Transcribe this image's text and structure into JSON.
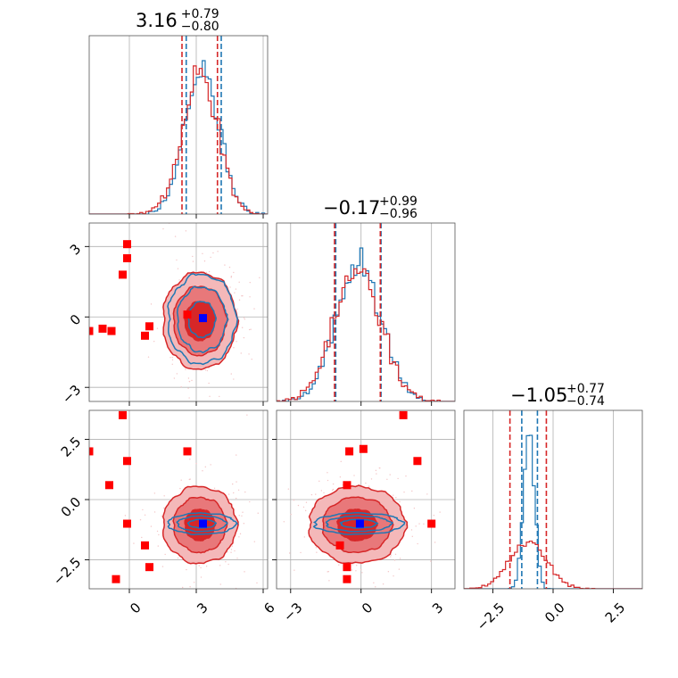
{
  "chart_data": {
    "type": "corner",
    "parameters": 3,
    "colors": {
      "red": "#d62728",
      "blue": "#1f77b4",
      "red_fill_outer": "#f4b8b9",
      "red_fill_mid": "#e8787a",
      "red_fill_inner": "#d62728",
      "grid": "#b0b0b0",
      "marker_red": "#ff0000",
      "marker_blue": "#0000ff"
    },
    "titles": [
      {
        "main": "3.16",
        "plus": "+0.79",
        "minus": "−0.80"
      },
      {
        "main": "−0.17",
        "plus": "+0.99",
        "minus": "−0.96"
      },
      {
        "main": "−1.05",
        "plus": "+0.77",
        "minus": "−0.74"
      }
    ],
    "ranges": [
      [
        -1.8,
        6.2
      ],
      [
        -3.6,
        4.0
      ],
      [
        -3.7,
        3.7
      ]
    ],
    "x_ticks": [
      {
        "values": [
          0,
          3,
          6
        ],
        "labels": [
          "0",
          "3",
          "6"
        ]
      },
      {
        "values": [
          -3,
          0,
          3
        ],
        "labels": [
          "−3",
          "0",
          "3"
        ]
      },
      {
        "values": [
          -2.5,
          0.0,
          2.5
        ],
        "labels": [
          "−2.5",
          "0.0",
          "2.5"
        ]
      }
    ],
    "y_ticks": [
      null,
      {
        "values": [
          -3,
          0,
          3
        ],
        "labels": [
          "−3",
          "0",
          "3"
        ]
      },
      {
        "values": [
          -2.5,
          0.0,
          2.5
        ],
        "labels": [
          "−2.5",
          "0.0",
          "2.5"
        ]
      }
    ],
    "hist1d": [
      {
        "red_mean": 3.16,
        "red_sd": 0.79,
        "red_q": [
          2.36,
          3.16,
          3.95
        ],
        "blue_mean": 3.25,
        "blue_sd": 0.76,
        "blue_q": [
          2.55,
          3.25,
          4.12
        ]
      },
      {
        "red_mean": -0.17,
        "red_sd": 0.98,
        "red_q": [
          -1.13,
          -0.17,
          0.82
        ],
        "blue_mean": -0.1,
        "blue_sd": 0.95,
        "blue_q": [
          -1.08,
          -0.1,
          0.85
        ]
      },
      {
        "red_mean": -1.05,
        "red_sd": 0.76,
        "red_q": [
          -1.79,
          -1.05,
          -0.28
        ],
        "blue_mean": -1.0,
        "blue_sd": 0.22,
        "blue_q": [
          -1.3,
          -1.0,
          -0.65
        ]
      }
    ],
    "truth_blue": [
      3.3,
      -0.05,
      -1.0
    ],
    "red_markers": {
      "1_0": [
        [
          -1.8,
          -0.6
        ],
        [
          -1.2,
          -0.5
        ],
        [
          -0.8,
          -0.6
        ],
        [
          -0.3,
          1.8
        ],
        [
          -0.1,
          2.5
        ],
        [
          -0.1,
          3.1
        ],
        [
          0.7,
          -0.8
        ],
        [
          0.9,
          -0.4
        ],
        [
          2.6,
          0.1
        ]
      ],
      "2_0": [
        [
          -1.8,
          2.0
        ],
        [
          -0.9,
          0.6
        ],
        [
          -0.3,
          3.5
        ],
        [
          -0.1,
          1.6
        ],
        [
          -0.1,
          -1.0
        ],
        [
          0.7,
          -1.9
        ],
        [
          0.9,
          -2.8
        ],
        [
          2.6,
          2.0
        ],
        [
          -0.6,
          -3.3
        ]
      ],
      "2_1": [
        [
          -0.5,
          2.0
        ],
        [
          -0.6,
          0.6
        ],
        [
          -0.6,
          -2.8
        ],
        [
          -0.9,
          -1.9
        ],
        [
          -0.6,
          -3.3
        ],
        [
          0.1,
          2.1
        ],
        [
          1.8,
          3.5
        ],
        [
          2.4,
          1.6
        ],
        [
          3.0,
          -1.0
        ]
      ]
    },
    "contours_red": {
      "1_0": {
        "cx": 3.16,
        "cy": -0.17,
        "sx": 0.79,
        "sy": 0.98
      },
      "2_0": {
        "cx": 3.16,
        "cy": -1.05,
        "sx": 0.79,
        "sy": 0.76
      },
      "2_1": {
        "cx": -0.17,
        "cy": -1.05,
        "sx": 0.98,
        "sy": 0.76
      }
    },
    "contours_blue": {
      "1_0": {
        "cx": 3.25,
        "cy": -0.1,
        "sx": 0.76,
        "sy": 0.95
      },
      "2_0": {
        "cx": 3.25,
        "cy": -1.0,
        "sx": 0.76,
        "sy": 0.22
      },
      "2_1": {
        "cx": -0.1,
        "cy": -1.0,
        "sx": 0.95,
        "sy": 0.22
      }
    },
    "grid": true
  }
}
